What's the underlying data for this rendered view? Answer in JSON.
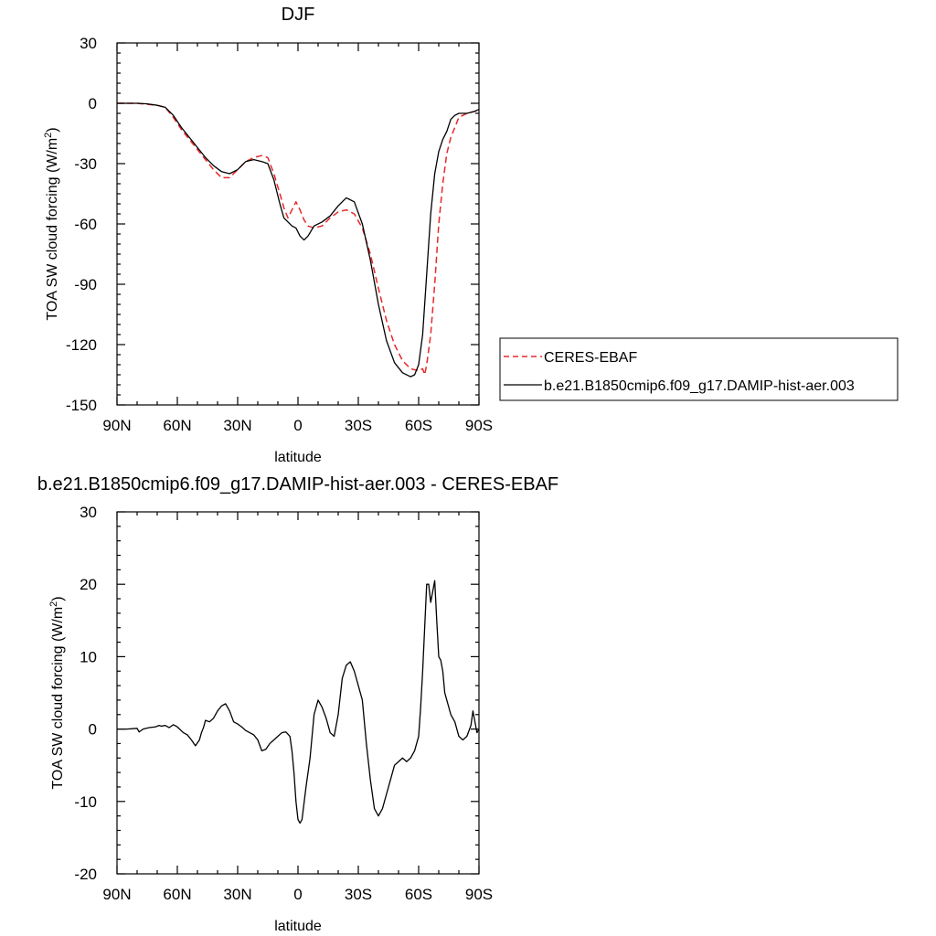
{
  "chart_data": [
    {
      "type": "line",
      "title": "DJF",
      "xlabel": "latitude",
      "ylabel": "TOA SW cloud forcing (W/m",
      "ylabel_sup": "2",
      "ylabel_close": ")",
      "xlim": [
        90,
        -90
      ],
      "ylim": [
        -150,
        30
      ],
      "xticks": [
        90,
        60,
        30,
        0,
        -30,
        -60,
        -90
      ],
      "xticklabels": [
        "90N",
        "60N",
        "30N",
        "0",
        "30S",
        "60S",
        "90S"
      ],
      "yticks": [
        30,
        0,
        -30,
        -60,
        -90,
        -120,
        -150
      ],
      "yticklabels": [
        "30",
        "0",
        "-30",
        "-60",
        "-90",
        "-120",
        "-150"
      ],
      "grid": false,
      "legend_position": "right",
      "series": [
        {
          "name": "CERES-EBAF",
          "color": "#e8282b",
          "dash": "dashed",
          "x": [
            90,
            85,
            80,
            75,
            70,
            66,
            62,
            58,
            54,
            50,
            46,
            42,
            38,
            34,
            30,
            26,
            22,
            18,
            15,
            12,
            9,
            7,
            5,
            3,
            1,
            -1,
            -3,
            -5,
            -8,
            -12,
            -16,
            -20,
            -24,
            -28,
            -32,
            -36,
            -40,
            -44,
            -48,
            -52,
            -56,
            -60,
            -62,
            -63,
            -64,
            -66,
            -68,
            -70,
            -72,
            -74,
            -76,
            -78,
            -80,
            -84,
            -88,
            -90
          ],
          "y": [
            0,
            0,
            0,
            -0.5,
            -1,
            -2,
            -7,
            -13,
            -18,
            -23,
            -28,
            -33,
            -37,
            -37,
            -33,
            -29,
            -27,
            -26,
            -27,
            -35,
            -45,
            -52,
            -57,
            -53,
            -49,
            -53,
            -58,
            -61,
            -62,
            -61,
            -57,
            -54,
            -53,
            -55,
            -62,
            -75,
            -92,
            -108,
            -120,
            -128,
            -132,
            -133,
            -132,
            -135,
            -130,
            -115,
            -90,
            -60,
            -40,
            -25,
            -17,
            -12,
            -7,
            -5,
            -4,
            -3
          ]
        },
        {
          "name": "b.e21.B1850cmip6.f09_g17.DAMIP-hist-aer.003",
          "color": "#000000",
          "dash": "solid",
          "x": [
            90,
            85,
            80,
            75,
            70,
            66,
            62,
            58,
            54,
            50,
            46,
            42,
            38,
            34,
            30,
            26,
            22,
            18,
            15,
            12,
            9,
            7,
            5,
            3,
            1,
            -1,
            -3,
            -5,
            -8,
            -12,
            -16,
            -20,
            -24,
            -28,
            -32,
            -36,
            -40,
            -44,
            -48,
            -52,
            -56,
            -58,
            -60,
            -62,
            -64,
            -66,
            -68,
            -70,
            -72,
            -74,
            -76,
            -78,
            -80,
            -84,
            -88,
            -90
          ],
          "y": [
            0,
            0,
            0,
            -0.3,
            -1,
            -2,
            -6,
            -12,
            -17,
            -22,
            -27,
            -31,
            -34,
            -35,
            -33,
            -29,
            -28,
            -29,
            -30,
            -38,
            -50,
            -57,
            -59,
            -61,
            -62,
            -66,
            -68,
            -66,
            -61,
            -59,
            -56,
            -51,
            -47,
            -49,
            -60,
            -78,
            -100,
            -118,
            -129,
            -134,
            -136,
            -135,
            -130,
            -115,
            -85,
            -55,
            -35,
            -24,
            -18,
            -14,
            -8,
            -6,
            -5,
            -5,
            -4,
            -3
          ]
        }
      ]
    },
    {
      "type": "line",
      "title": "b.e21.B1850cmip6.f09_g17.DAMIP-hist-aer.003 - CERES-EBAF",
      "xlabel": "latitude",
      "ylabel": "TOA SW cloud forcing (W/m",
      "ylabel_sup": "2",
      "ylabel_close": ")",
      "xlim": [
        90,
        -90
      ],
      "ylim": [
        -20,
        30
      ],
      "xticks": [
        90,
        60,
        30,
        0,
        -30,
        -60,
        -90
      ],
      "xticklabels": [
        "90N",
        "60N",
        "30N",
        "0",
        "30S",
        "60S",
        "90S"
      ],
      "yticks": [
        30,
        20,
        10,
        0,
        -10,
        -20
      ],
      "yticklabels": [
        "30",
        "20",
        "10",
        "0",
        "-10",
        "-20"
      ],
      "grid": false,
      "series": [
        {
          "color": "#000000",
          "dash": "solid",
          "x": [
            90,
            85,
            80,
            79,
            77,
            74,
            71,
            69,
            68,
            66,
            64,
            62,
            60,
            57,
            55,
            53,
            51,
            49,
            48,
            47,
            46,
            44,
            42,
            40,
            38,
            36,
            34,
            32,
            30,
            28,
            26,
            24,
            22,
            20,
            18,
            16,
            14,
            12,
            10,
            8,
            6,
            4,
            3,
            2,
            1,
            0,
            -1,
            -2,
            -4,
            -6,
            -8,
            -10,
            -12,
            -14,
            -16,
            -18,
            -20,
            -22,
            -24,
            -26,
            -28,
            -30,
            -32,
            -34,
            -36,
            -38,
            -40,
            -42,
            -44,
            -46,
            -48,
            -50,
            -52,
            -54,
            -56,
            -58,
            -60,
            -61,
            -62,
            -63,
            -64,
            -65,
            -66,
            -67,
            -68,
            -69,
            -70,
            -71,
            -72,
            -73,
            -74,
            -76,
            -78,
            -80,
            -82,
            -84,
            -86,
            -87,
            -88,
            -89,
            -90
          ],
          "y": [
            0,
            0,
            0.1,
            -0.4,
            0,
            0.2,
            0.3,
            0.5,
            0.4,
            0.5,
            0.2,
            0.6,
            0.3,
            -0.5,
            -0.8,
            -1.5,
            -2.3,
            -1.5,
            -0.5,
            0.2,
            1.2,
            1,
            1.5,
            2.5,
            3.2,
            3.5,
            2.5,
            1,
            0.7,
            0.3,
            -0.2,
            -0.5,
            -0.8,
            -1.5,
            -3,
            -2.8,
            -2,
            -1.5,
            -1,
            -0.5,
            -0.4,
            -1,
            -3,
            -6,
            -10,
            -12.5,
            -13,
            -12.5,
            -8,
            -4,
            2,
            4,
            3,
            1.5,
            -0.5,
            -1,
            2,
            7,
            8.8,
            9.3,
            8,
            6,
            4,
            -2,
            -7,
            -11,
            -12,
            -11,
            -9,
            -7,
            -5,
            -4.5,
            -4,
            -4.5,
            -4,
            -3,
            -1,
            3,
            8,
            14,
            20,
            20,
            17.5,
            19,
            20.5,
            15,
            10,
            9.5,
            8,
            5,
            4,
            2,
            1,
            -1,
            -1.5,
            -1,
            0.5,
            2.5,
            1,
            -0.5,
            0
          ]
        }
      ]
    }
  ],
  "legend": {
    "items": [
      {
        "label": "CERES-EBAF",
        "color": "#e8282b",
        "dash": "dashed"
      },
      {
        "label": "b.e21.B1850cmip6.f09_g17.DAMIP-hist-aer.003",
        "color": "#000000",
        "dash": "solid"
      }
    ]
  }
}
